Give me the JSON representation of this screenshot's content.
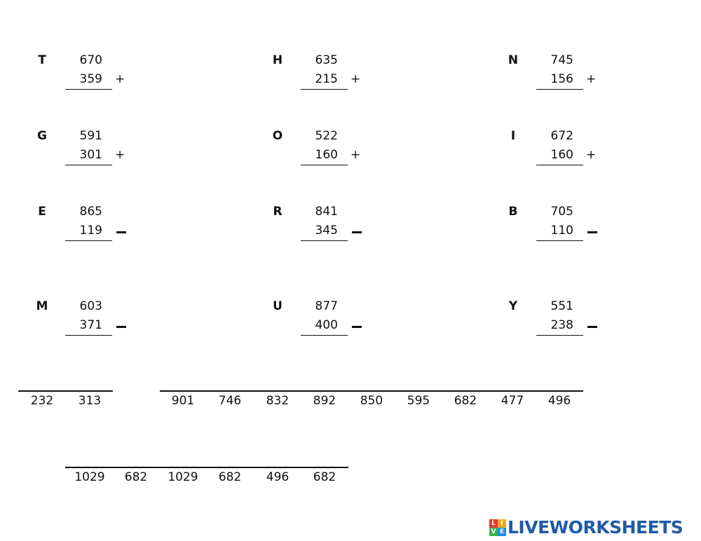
{
  "problems": [
    {
      "letter": "T",
      "top": "670",
      "bottom": "359",
      "op": "+"
    },
    {
      "letter": "H",
      "top": "635",
      "bottom": "215",
      "op": "+"
    },
    {
      "letter": "N",
      "top": "745",
      "bottom": "156",
      "op": "+"
    },
    {
      "letter": "G",
      "top": "591",
      "bottom": "301",
      "op": "+"
    },
    {
      "letter": "O",
      "top": "522",
      "bottom": "160",
      "op": "+"
    },
    {
      "letter": "I",
      "top": "672",
      "bottom": "160",
      "op": "+"
    },
    {
      "letter": "E",
      "top": "865",
      "bottom": "119",
      "op": "−"
    },
    {
      "letter": "R",
      "top": "841",
      "bottom": "345",
      "op": "−"
    },
    {
      "letter": "B",
      "top": "705",
      "bottom": "110",
      "op": "−"
    },
    {
      "letter": "M",
      "top": "603",
      "bottom": "371",
      "op": "−"
    },
    {
      "letter": "U",
      "top": "877",
      "bottom": "400",
      "op": "−"
    },
    {
      "letter": "Y",
      "top": "551",
      "bottom": "238",
      "op": "−"
    }
  ],
  "answer_rows": [
    {
      "groups": [
        [
          "232",
          "313"
        ],
        [
          "901",
          "746",
          "832",
          "892",
          "850",
          "595",
          "682",
          "477",
          "496"
        ]
      ]
    },
    {
      "groups": [
        [
          "1029",
          "682",
          "1029",
          "682",
          "496",
          "682"
        ]
      ]
    }
  ],
  "logo": {
    "mark": [
      "L",
      "I",
      "V",
      "E"
    ],
    "text": "LIVEWORKSHEETS",
    "colors": [
      "#e63b2e",
      "#f5a623",
      "#3cb44b",
      "#1f8ee0"
    ],
    "text_color": "#1f5aa8"
  }
}
